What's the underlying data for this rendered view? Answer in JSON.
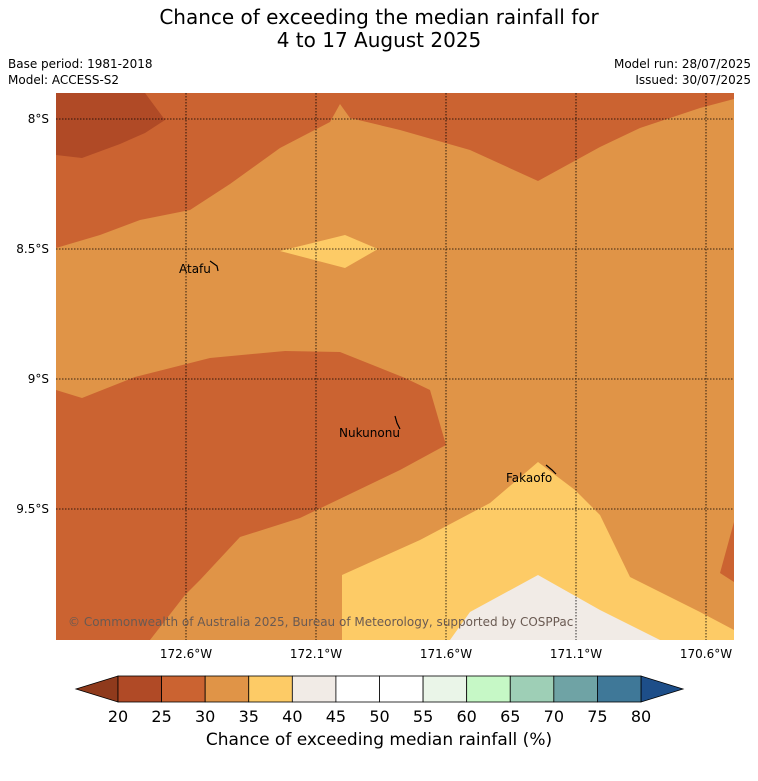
{
  "title": {
    "line1": "Chance of exceeding the median rainfall for",
    "line2": "4 to 17 August 2025"
  },
  "meta_left": {
    "base_period": "Base period: 1981-2018",
    "model": "Model: ACCESS-S2"
  },
  "meta_right": {
    "model_run": "Model run: 28/07/2025",
    "issued": "Issued: 30/07/2025"
  },
  "map": {
    "lat_ticks": [
      "8°S",
      "8.5°S",
      "9°S",
      "9.5°S"
    ],
    "lon_ticks": [
      "172.6°W",
      "172.1°W",
      "171.6°W",
      "171.1°W",
      "170.6°W"
    ],
    "places": [
      "Atafu",
      "Nukunonu",
      "Fakaofo"
    ],
    "copyright": "© Commonwealth of Australia 2025, Bureau of Meteorology, supported by COSPPac"
  },
  "colorbar": {
    "label": "Chance of exceeding median rainfall (%)",
    "ticks": [
      "20",
      "25",
      "30",
      "35",
      "40",
      "45",
      "50",
      "55",
      "60",
      "65",
      "70",
      "75",
      "80"
    ],
    "colors": [
      "#b04a26",
      "#cb6331",
      "#e09447",
      "#fdcb66",
      "#f1ebe6",
      "#ffffff",
      "#ffffff",
      "#eaf5e8",
      "#c6f8c6",
      "#9ecfb6",
      "#6fa3a5",
      "#3f7898"
    ],
    "under_color": "#8f3a1c",
    "over_color": "#1d4e89"
  },
  "legend_colors": {
    "band_20_25": "#b04a26",
    "band_25_30": "#cb6331",
    "band_30_35": "#e09447",
    "band_35_40": "#fdcb66",
    "band_40_45": "#f1ebe6"
  }
}
